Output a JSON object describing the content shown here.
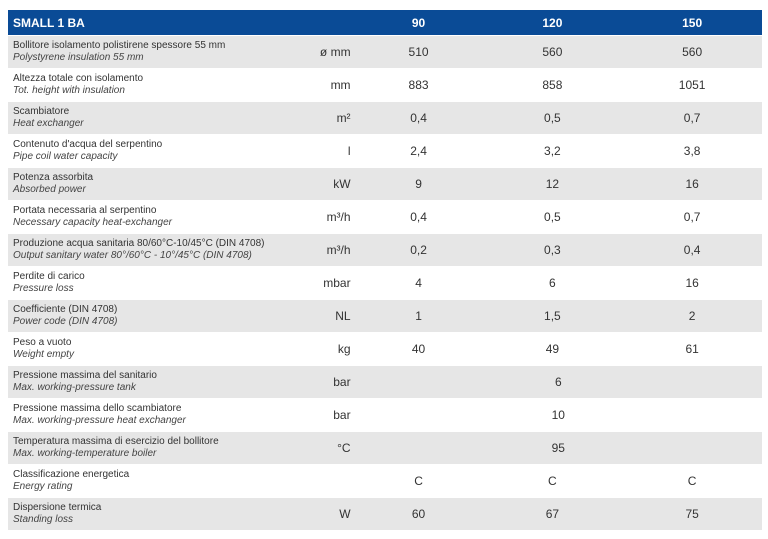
{
  "header": {
    "title": "SMALL 1 BA",
    "models": [
      "90",
      "120",
      "150"
    ]
  },
  "rows": [
    {
      "it": "Bollitore isolamento polistirene spessore 55 mm",
      "en": "Polystyrene insulation 55 mm",
      "unit": "ø mm",
      "values": [
        "510",
        "560",
        "560"
      ]
    },
    {
      "it": "Altezza totale con isolamento",
      "en": "Tot. height with insulation",
      "unit": "mm",
      "values": [
        "883",
        "858",
        "1051"
      ]
    },
    {
      "it": "Scambiatore",
      "en": "Heat exchanger",
      "unit": "m²",
      "values": [
        "0,4",
        "0,5",
        "0,7"
      ]
    },
    {
      "it": "Contenuto d'acqua del serpentino",
      "en": "Pipe coil water capacity",
      "unit": "l",
      "values": [
        "2,4",
        "3,2",
        "3,8"
      ]
    },
    {
      "it": "Potenza assorbita",
      "en": "Absorbed power",
      "unit": "kW",
      "values": [
        "9",
        "12",
        "16"
      ]
    },
    {
      "it": "Portata necessaria al serpentino",
      "en": "Necessary capacity heat-exchanger",
      "unit": "m³/h",
      "values": [
        "0,4",
        "0,5",
        "0,7"
      ]
    },
    {
      "it": "Produzione acqua sanitaria 80/60°C-10/45°C (DIN 4708)",
      "en": "Output sanitary water 80°/60°C - 10°/45°C (DIN 4708)",
      "unit": "m³/h",
      "values": [
        "0,2",
        "0,3",
        "0,4"
      ]
    },
    {
      "it": "Perdite di carico",
      "en": "Pressure loss",
      "unit": "mbar",
      "values": [
        "4",
        "6",
        "16"
      ]
    },
    {
      "it": "Coefficiente (DIN 4708)",
      "en": "Power code (DIN 4708)",
      "unit": "NL",
      "values": [
        "1",
        "1,5",
        "2"
      ]
    },
    {
      "it": "Peso a vuoto",
      "en": "Weight empty",
      "unit": "kg",
      "values": [
        "40",
        "49",
        "61"
      ]
    },
    {
      "it": "Pressione massima del sanitario",
      "en": "Max. working-pressure tank",
      "unit": "bar",
      "merged": "6"
    },
    {
      "it": "Pressione massima dello scambiatore",
      "en": "Max. working-pressure heat exchanger",
      "unit": "bar",
      "merged": "10"
    },
    {
      "it": "Temperatura massima di esercizio del bollitore",
      "en": "Max. working-temperature boiler",
      "unit": "°C",
      "merged": "95"
    },
    {
      "it": "Classificazione energetica",
      "en": "Energy rating",
      "unit": "",
      "values": [
        "C",
        "C",
        "C"
      ]
    },
    {
      "it": "Dispersione termica",
      "en": "Standing loss",
      "unit": "W",
      "values": [
        "60",
        "67",
        "75"
      ]
    }
  ]
}
